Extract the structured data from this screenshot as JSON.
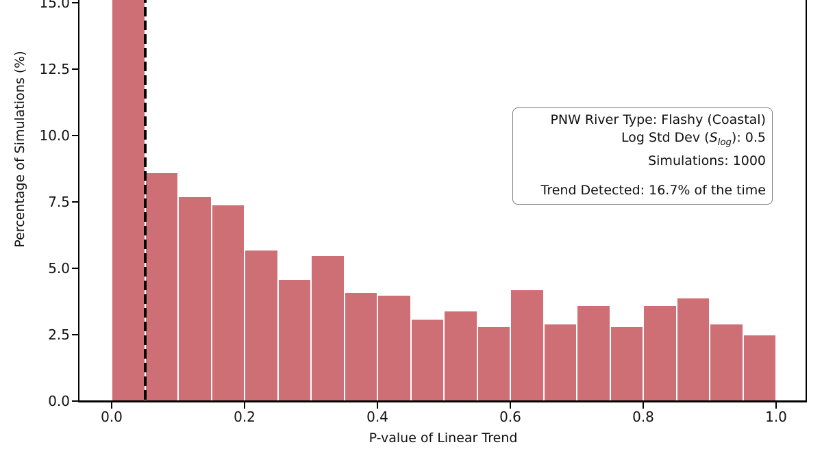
{
  "figure": {
    "background": "#ffffff",
    "bar_color": "#ce6e75",
    "bar_edge_color": "#ffffff",
    "spine_color": "#000000",
    "annotation_border_color": "#7f7f7f"
  },
  "chart_data": {
    "type": "bar",
    "subtype": "histogram",
    "title": "",
    "xlabel": "P-value of Linear Trend",
    "ylabel": "Percentage of Simulations (%)",
    "bin_start": 0.0,
    "bin_width": 0.05,
    "bin_edges": [
      0.0,
      0.05,
      0.1,
      0.15,
      0.2,
      0.25,
      0.3,
      0.35,
      0.4,
      0.45,
      0.5,
      0.55,
      0.6,
      0.65,
      0.7,
      0.75,
      0.8,
      0.85,
      0.9,
      0.95,
      1.0
    ],
    "values": [
      16.7,
      8.6,
      7.7,
      7.4,
      5.7,
      4.6,
      5.5,
      4.1,
      4.0,
      3.1,
      3.4,
      2.8,
      4.2,
      2.9,
      3.6,
      2.8,
      3.6,
      3.9,
      2.9,
      2.5
    ],
    "x_tick_labels": [
      "0.0",
      "0.2",
      "0.4",
      "0.6",
      "0.8",
      "1.0"
    ],
    "y_tick_labels": [
      "0.0",
      "2.5",
      "5.0",
      "7.5",
      "10.0",
      "12.5",
      "15.0"
    ],
    "xlim": [
      -0.05,
      1.045
    ],
    "ylim_visible_top": 15.0,
    "grid": false,
    "legend_position": "none",
    "significance_line": {
      "x": 0.05,
      "color": "#000000",
      "style": "dashed"
    }
  },
  "annotation_box": {
    "line1": "PNW River Type: Flashy (Coastal)",
    "line2": {
      "prefix": "Log Std Dev (",
      "var": "S",
      "sub": "log",
      "suffix": "): 0.5"
    },
    "line3": "Simulations: 1000",
    "line4": "Trend Detected: 16.7% of the time"
  }
}
